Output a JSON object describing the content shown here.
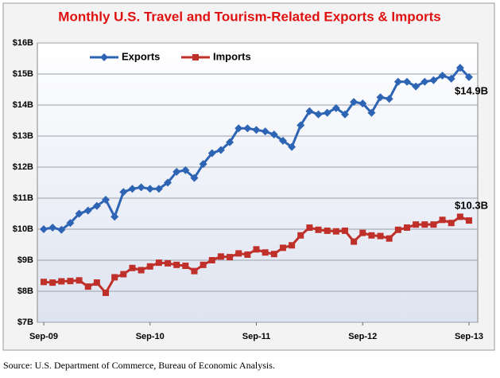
{
  "chart_data": {
    "type": "line",
    "title": "Monthly U.S. Travel and Tourism-Related Exports & Imports",
    "source": "Source: U.S. Department of Commerce, Bureau of Economic Analysis.",
    "categories": [
      "Sep-09",
      null,
      null,
      null,
      null,
      null,
      null,
      null,
      null,
      null,
      null,
      null,
      "Sep-10",
      null,
      null,
      null,
      null,
      null,
      null,
      null,
      null,
      null,
      null,
      null,
      "Sep-11",
      null,
      null,
      null,
      null,
      null,
      null,
      null,
      null,
      null,
      null,
      null,
      "Sep-12",
      null,
      null,
      null,
      null,
      null,
      null,
      null,
      null,
      null,
      null,
      null,
      "Sep-13"
    ],
    "series": [
      {
        "name": "Exports",
        "color": "#2e64b4",
        "values": [
          10.0,
          10.05,
          9.98,
          10.2,
          10.5,
          10.6,
          10.75,
          10.95,
          10.4,
          11.2,
          11.3,
          11.35,
          11.3,
          11.3,
          11.5,
          11.85,
          11.9,
          11.65,
          12.1,
          12.45,
          12.55,
          12.8,
          13.25,
          13.25,
          13.2,
          13.15,
          13.05,
          12.85,
          12.65,
          13.35,
          13.8,
          13.7,
          13.75,
          13.9,
          13.7,
          14.1,
          14.05,
          13.75,
          14.25,
          14.2,
          14.75,
          14.75,
          14.6,
          14.75,
          14.8,
          14.95,
          14.85,
          15.2,
          14.9
        ],
        "value_labels": [
          null,
          null,
          null,
          null,
          null,
          null,
          null,
          null,
          null,
          null,
          null,
          null,
          null,
          null,
          null,
          null,
          null,
          null,
          null,
          null,
          null,
          null,
          null,
          null,
          null,
          null,
          null,
          null,
          null,
          null,
          null,
          null,
          null,
          null,
          null,
          null,
          null,
          null,
          null,
          null,
          null,
          null,
          null,
          null,
          null,
          null,
          null,
          null,
          "$14.9B"
        ]
      },
      {
        "name": "Imports",
        "color": "#c0302a",
        "values": [
          8.3,
          8.28,
          8.32,
          8.33,
          8.35,
          8.15,
          8.28,
          7.95,
          8.45,
          8.55,
          8.75,
          8.68,
          8.8,
          8.92,
          8.9,
          8.85,
          8.82,
          8.65,
          8.85,
          9.0,
          9.12,
          9.1,
          9.22,
          9.18,
          9.35,
          9.25,
          9.2,
          9.4,
          9.48,
          9.8,
          10.05,
          9.98,
          9.95,
          9.93,
          9.95,
          9.6,
          9.88,
          9.8,
          9.78,
          9.7,
          9.98,
          10.05,
          10.15,
          10.15,
          10.15,
          10.3,
          10.2,
          10.4,
          10.28
        ],
        "value_labels": [
          null,
          null,
          null,
          null,
          null,
          null,
          null,
          null,
          null,
          null,
          null,
          null,
          null,
          null,
          null,
          null,
          null,
          null,
          null,
          null,
          null,
          null,
          null,
          null,
          null,
          null,
          null,
          null,
          null,
          null,
          null,
          null,
          null,
          null,
          null,
          null,
          null,
          null,
          null,
          null,
          null,
          null,
          null,
          null,
          null,
          null,
          null,
          null,
          "$10.3B"
        ]
      }
    ],
    "ylim": [
      7,
      16
    ],
    "yticks": [
      {
        "value": 7,
        "label": "$7B"
      },
      {
        "value": 8,
        "label": "$8B"
      },
      {
        "value": 9,
        "label": "$9B"
      },
      {
        "value": 10,
        "label": "$10B"
      },
      {
        "value": 11,
        "label": "$11B"
      },
      {
        "value": 12,
        "label": "$12B"
      },
      {
        "value": 13,
        "label": "$13B"
      },
      {
        "value": 14,
        "label": "$14B"
      },
      {
        "value": 15,
        "label": "$15B"
      },
      {
        "value": 16,
        "label": "$16B"
      }
    ],
    "grid": true,
    "legend": "top-left"
  }
}
